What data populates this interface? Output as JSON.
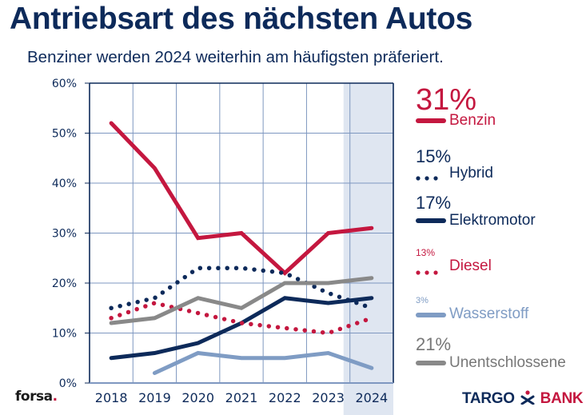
{
  "header": {
    "title": "Antriebsart des nächsten Autos",
    "subtitle": "Benziner werden 2024 weiterhin am häufigsten präferiert."
  },
  "chart_data": {
    "type": "line",
    "title": "Antriebsart des nächsten Autos",
    "subtitle": "Benziner werden 2024 weiterhin am häufigsten präferiert.",
    "xlabel": "",
    "ylabel": "",
    "x": [
      "2018",
      "2019",
      "2020",
      "2021",
      "2022",
      "2023",
      "2024"
    ],
    "ylim": [
      0,
      60
    ],
    "yticks": [
      "0%",
      "10%",
      "20%",
      "30%",
      "40%",
      "50%",
      "60%"
    ],
    "grid": true,
    "highlighted_category": "2024",
    "legend_position": "right",
    "series": [
      {
        "key": "benzin",
        "name": "Benzin",
        "latest": "31%",
        "color": "#c4173f",
        "style": "solid",
        "values": [
          52,
          43,
          29,
          30,
          22,
          30,
          31
        ]
      },
      {
        "key": "hybrid",
        "name": "Hybrid",
        "latest": "15%",
        "color": "#0d2a5a",
        "style": "dotted",
        "values": [
          15,
          17,
          23,
          23,
          22,
          18,
          15
        ]
      },
      {
        "key": "elektro",
        "name": "Elektromotor",
        "latest": "17%",
        "color": "#0d2a5a",
        "style": "solid",
        "values": [
          5,
          6,
          8,
          12,
          17,
          16,
          17
        ]
      },
      {
        "key": "diesel",
        "name": "Diesel",
        "latest": "13%",
        "color": "#c4173f",
        "style": "dotted",
        "values": [
          13,
          16,
          14,
          12,
          11,
          10,
          13
        ]
      },
      {
        "key": "wasserstoff",
        "name": "Wasserstoff",
        "latest": "3%",
        "color": "#7f9cc4",
        "style": "solid",
        "values": [
          null,
          2,
          6,
          5,
          5,
          6,
          3
        ]
      },
      {
        "key": "unentschlossene",
        "name": "Unentschlossene",
        "latest": "21%",
        "color": "#898989",
        "style": "solid",
        "values": [
          12,
          13,
          17,
          15,
          20,
          20,
          21
        ]
      }
    ]
  },
  "footer": {
    "source": "forsa",
    "source_dot": ".",
    "brand_left": "TARGO",
    "brand_right": "BANK"
  }
}
